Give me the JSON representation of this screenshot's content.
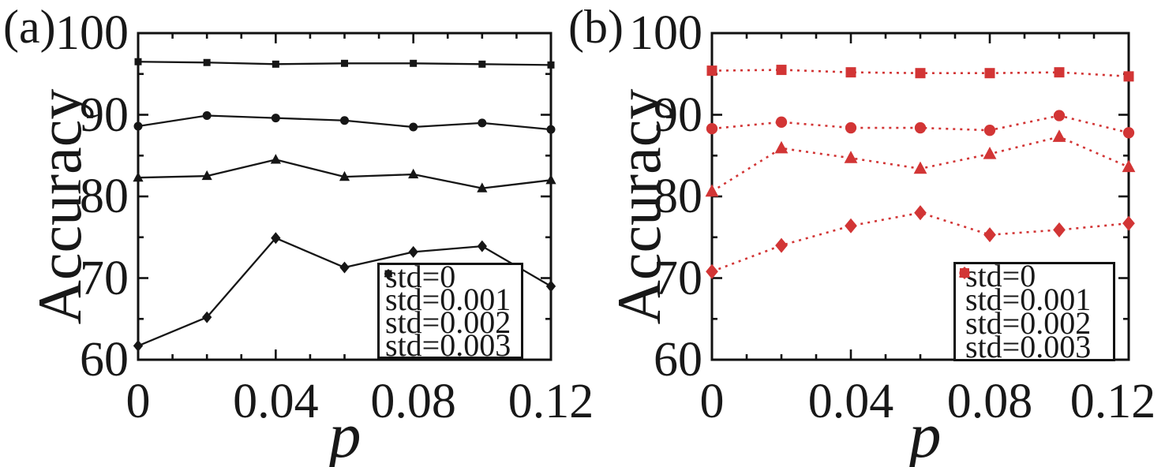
{
  "chart_data": [
    {
      "type": "line",
      "panel_label": "(a)",
      "title": "",
      "xlabel": "p",
      "ylabel": "Accuracy",
      "xlim": [
        0,
        0.12
      ],
      "ylim": [
        60,
        100
      ],
      "x_major_tick_values": [
        0,
        0.04,
        0.08,
        0.12
      ],
      "x_major_tick_labels": [
        "0",
        "0.04",
        "0.08",
        "0.12"
      ],
      "x_minor_step": 0.01,
      "y_major_tick_values": [
        60,
        70,
        80,
        90,
        100
      ],
      "y_major_tick_labels": [
        "60",
        "70",
        "80",
        "90",
        "100"
      ],
      "y_minor_step": 5,
      "grid": false,
      "legend_position": "lower-right",
      "color": "#161616",
      "line_style": "solid",
      "x": [
        0,
        0.02,
        0.04,
        0.06,
        0.08,
        0.1,
        0.12
      ],
      "series": [
        {
          "name": "std=0",
          "marker": "square",
          "values": [
            96.5,
            96.4,
            96.2,
            96.3,
            96.3,
            96.2,
            96.1
          ]
        },
        {
          "name": "std=0.001",
          "marker": "circle",
          "values": [
            88.6,
            89.9,
            89.6,
            89.3,
            88.5,
            89.0,
            88.2
          ]
        },
        {
          "name": "std=0.002",
          "marker": "triangle",
          "values": [
            82.3,
            82.5,
            84.5,
            82.4,
            82.7,
            81.0,
            82.0
          ]
        },
        {
          "name": "std=0.003",
          "marker": "diamond",
          "values": [
            61.7,
            65.2,
            74.9,
            71.3,
            73.2,
            73.9,
            69.0
          ]
        }
      ]
    },
    {
      "type": "line",
      "panel_label": "(b)",
      "title": "",
      "xlabel": "p",
      "ylabel": "Accuracy",
      "xlim": [
        0,
        0.12
      ],
      "ylim": [
        60,
        100
      ],
      "x_major_tick_values": [
        0,
        0.04,
        0.08,
        0.12
      ],
      "x_major_tick_labels": [
        "0",
        "0.04",
        "0.08",
        "0.12"
      ],
      "x_minor_step": 0.01,
      "y_major_tick_values": [
        60,
        70,
        80,
        90,
        100
      ],
      "y_major_tick_labels": [
        "60",
        "70",
        "80",
        "90",
        "100"
      ],
      "y_minor_step": 5,
      "grid": false,
      "legend_position": "lower-right",
      "color": "#d23535",
      "line_style": "dotted",
      "x": [
        0,
        0.02,
        0.04,
        0.06,
        0.08,
        0.1,
        0.12
      ],
      "series": [
        {
          "name": "std=0",
          "marker": "square",
          "values": [
            95.4,
            95.5,
            95.2,
            95.1,
            95.1,
            95.2,
            94.7
          ]
        },
        {
          "name": "std=0.001",
          "marker": "circle",
          "values": [
            88.3,
            89.1,
            88.4,
            88.4,
            88.1,
            89.9,
            87.8
          ]
        },
        {
          "name": "std=0.002",
          "marker": "triangle",
          "values": [
            80.6,
            85.9,
            84.7,
            83.4,
            85.2,
            87.3,
            83.6
          ]
        },
        {
          "name": "std=0.003",
          "marker": "diamond",
          "values": [
            70.8,
            74.0,
            76.4,
            78.0,
            75.3,
            75.9,
            76.7
          ]
        }
      ]
    }
  ]
}
